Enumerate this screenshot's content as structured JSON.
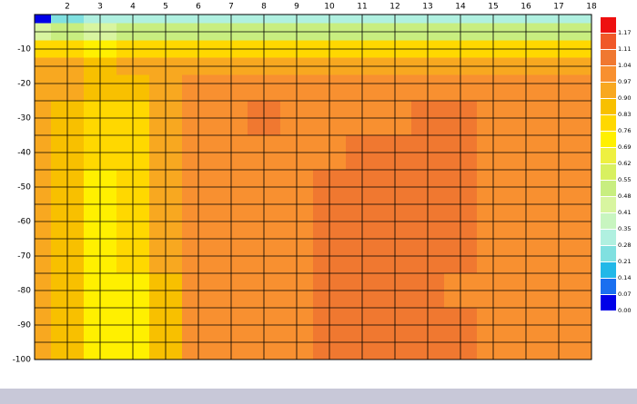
{
  "chart_data": {
    "type": "contour",
    "x": [
      1,
      2,
      3,
      4,
      5,
      6,
      7,
      8,
      9,
      10,
      11,
      12,
      13,
      14,
      15,
      16,
      17,
      18
    ],
    "y": [
      0,
      -5,
      -10,
      -15,
      -20,
      -30,
      -40,
      -50,
      -60,
      -70,
      -80,
      -90,
      -100
    ],
    "z": [
      [
        0.05,
        0.25,
        0.3,
        0.32,
        0.3,
        0.3,
        0.3,
        0.3,
        0.3,
        0.3,
        0.32,
        0.32,
        0.3,
        0.32,
        0.34,
        0.34,
        0.34,
        0.34
      ],
      [
        0.45,
        0.5,
        0.45,
        0.5,
        0.5,
        0.5,
        0.5,
        0.5,
        0.5,
        0.52,
        0.52,
        0.52,
        0.52,
        0.5,
        0.5,
        0.5,
        0.5,
        0.5
      ],
      [
        0.78,
        0.78,
        0.75,
        0.78,
        0.8,
        0.8,
        0.8,
        0.8,
        0.8,
        0.8,
        0.82,
        0.82,
        0.82,
        0.8,
        0.8,
        0.8,
        0.8,
        0.8
      ],
      [
        0.9,
        0.9,
        0.88,
        0.9,
        0.92,
        0.93,
        0.93,
        0.93,
        0.93,
        0.93,
        0.94,
        0.94,
        0.94,
        0.93,
        0.93,
        0.93,
        0.93,
        0.93
      ],
      [
        0.93,
        0.9,
        0.85,
        0.88,
        0.92,
        0.98,
        0.99,
        0.99,
        0.99,
        0.99,
        0.99,
        1.0,
        1.0,
        1.0,
        0.99,
        0.99,
        0.99,
        0.99
      ],
      [
        0.95,
        0.88,
        0.8,
        0.82,
        0.9,
        0.99,
        1.02,
        1.05,
        1.02,
        1.02,
        1.02,
        1.03,
        1.05,
        1.05,
        1.02,
        1.02,
        1.02,
        1.02
      ],
      [
        0.95,
        0.88,
        0.78,
        0.8,
        0.9,
        1.0,
        1.02,
        1.02,
        1.02,
        1.03,
        1.05,
        1.06,
        1.05,
        1.05,
        1.02,
        1.02,
        1.02,
        1.02
      ],
      [
        0.95,
        0.88,
        0.75,
        0.76,
        0.9,
        1.0,
        1.02,
        1.02,
        1.02,
        1.06,
        1.06,
        1.06,
        1.06,
        1.05,
        1.02,
        1.02,
        1.02,
        1.02
      ],
      [
        0.95,
        0.88,
        0.75,
        0.76,
        0.9,
        1.0,
        1.02,
        1.02,
        1.02,
        1.06,
        1.06,
        1.06,
        1.06,
        1.05,
        1.02,
        1.02,
        1.02,
        1.02
      ],
      [
        0.95,
        0.88,
        0.75,
        0.76,
        0.9,
        1.0,
        1.02,
        1.02,
        1.02,
        1.06,
        1.06,
        1.06,
        1.06,
        1.05,
        1.02,
        1.02,
        1.02,
        1.02
      ],
      [
        0.95,
        0.86,
        0.74,
        0.74,
        0.88,
        1.0,
        1.02,
        1.02,
        1.02,
        1.06,
        1.06,
        1.06,
        1.05,
        1.03,
        1.02,
        1.02,
        1.02,
        1.02
      ],
      [
        0.95,
        0.86,
        0.72,
        0.72,
        0.88,
        1.0,
        1.02,
        1.02,
        1.02,
        1.06,
        1.06,
        1.05,
        1.06,
        1.05,
        1.02,
        1.02,
        1.02,
        1.02
      ],
      [
        0.95,
        0.86,
        0.7,
        0.7,
        0.88,
        1.0,
        1.02,
        1.02,
        1.02,
        1.05,
        1.06,
        1.04,
        1.06,
        1.06,
        1.0,
        1.02,
        1.02,
        1.02
      ]
    ],
    "xlim": [
      1,
      18
    ],
    "ylim": [
      -100,
      0
    ],
    "xticks": [
      2,
      3,
      4,
      5,
      6,
      7,
      8,
      9,
      10,
      11,
      12,
      13,
      14,
      15,
      16,
      17,
      18
    ],
    "yticks": [
      -10,
      -20,
      -30,
      -40,
      -50,
      -60,
      -70,
      -80,
      -90,
      -100
    ],
    "ygrid_minor": [
      -5,
      -15,
      -25,
      -35,
      -45,
      -55,
      -65,
      -75,
      -85,
      -95
    ],
    "grid": true,
    "colorbar": {
      "levels": [
        {
          "value": 0,
          "label": "0.00"
        },
        {
          "value": 0.07,
          "label": "0.07"
        },
        {
          "value": 0.14,
          "label": "0.14"
        },
        {
          "value": 0.21,
          "label": "0.21"
        },
        {
          "value": 0.28,
          "label": "0.28"
        },
        {
          "value": 0.35,
          "label": "0.35"
        },
        {
          "value": 0.41,
          "label": "0.41"
        },
        {
          "value": 0.48,
          "label": "0.48"
        },
        {
          "value": 0.55,
          "label": "0.55"
        },
        {
          "value": 0.62,
          "label": "0.62"
        },
        {
          "value": 0.69,
          "label": "0.69"
        },
        {
          "value": 0.76,
          "label": "0.76"
        },
        {
          "value": 0.83,
          "label": "0.83"
        },
        {
          "value": 0.9,
          "label": "0.90"
        },
        {
          "value": 0.97,
          "label": "0.97"
        },
        {
          "value": 1.04,
          "label": "1.04"
        },
        {
          "value": 1.11,
          "label": "1.11"
        },
        {
          "value": 1.17,
          "label": "1.17"
        }
      ],
      "colors": [
        "#0000e8",
        "#1a6ff0",
        "#22b8e8",
        "#80e0e0",
        "#b0f0e0",
        "#c8f5c0",
        "#d8f5a0",
        "#c8ee80",
        "#d8f060",
        "#eef040",
        "#fff000",
        "#ffd800",
        "#f8c000",
        "#f8a820",
        "#f89030",
        "#f07830",
        "#f05828",
        "#ee1010"
      ]
    }
  }
}
